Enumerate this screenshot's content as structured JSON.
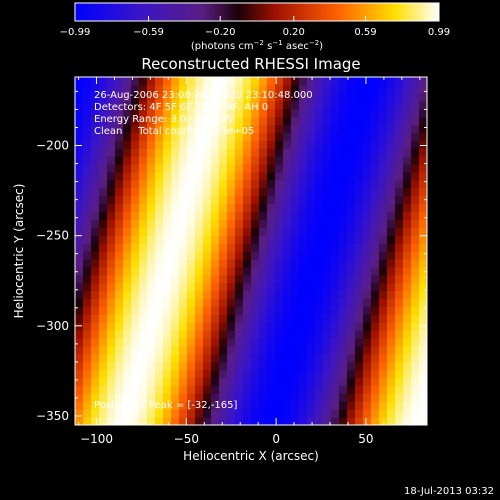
{
  "chart_data": {
    "type": "heatmap",
    "title": "Reconstructed RHESSI Image",
    "xlabel": "Heliocentric X (arcsec)",
    "ylabel": "Heliocentric Y (arcsec)",
    "xlim": [
      -112,
      84
    ],
    "ylim": [
      -355,
      -162
    ],
    "x_ticks": [
      -100,
      -50,
      0,
      50
    ],
    "y_ticks": [
      -200,
      -250,
      -300,
      -350
    ],
    "x_tick_labels": [
      "−100",
      "−50",
      "0",
      "50"
    ],
    "y_tick_labels": [
      "−200",
      "−250",
      "−300",
      "−350"
    ],
    "colorbar": {
      "range": [
        -0.99,
        0.99
      ],
      "tick_values": [
        -0.99,
        -0.59,
        -0.2,
        0.2,
        0.59,
        0.99
      ],
      "tick_labels": [
        "−0.99",
        "−0.59",
        "−0.20",
        "0.20",
        "0.59",
        "0.99"
      ],
      "unit_prefix": "(photons cm",
      "unit_exp1": "−2",
      "unit_mid": " s",
      "unit_exp2": "−1",
      "unit_mid2": " asec",
      "unit_exp3": "−2",
      "unit_suffix": ")"
    },
    "image_model": {
      "description_of_pattern": "diagonal fringe pattern",
      "peak_center_x": -32,
      "peak_center_y": -165,
      "fringe_half_period_arcsec": 82,
      "tilt_dx_per_dy": 0.28
    },
    "annotations": {
      "line1": "26-Aug-2006 23:08:28.000 to 23:10:48.000",
      "line2": "Detectors: 4F 5F 6F 7F 8F 9F, AH 0",
      "line3": "Energy Range: 3.0 - 6.0 keV",
      "line4": "Clean     Total counts: 5.23e+05",
      "peak": "Position of Peak = [-32,-165]"
    },
    "colors": {
      "colormap": "IDL color table 5 (STD GAMMA-II)",
      "background": "#000000",
      "foreground": "#ffffff"
    }
  },
  "footer": {
    "timestamp": "18-Jul-2013 03:32"
  }
}
